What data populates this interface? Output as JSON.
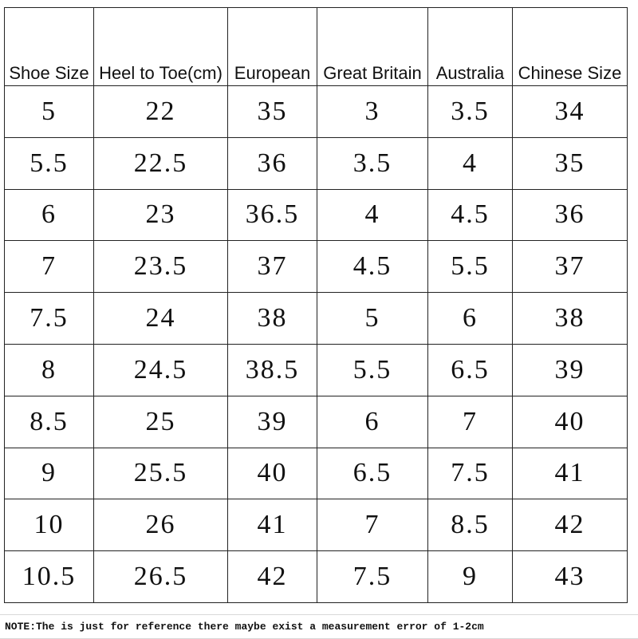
{
  "table": {
    "header": [
      "Shoe Size",
      "Heel to Toe(cm)",
      "European",
      "Great Britain",
      "Australia",
      "Chinese Size"
    ],
    "rows": [
      [
        "5",
        "22",
        "35",
        "3",
        "3.5",
        "34"
      ],
      [
        "5.5",
        "22.5",
        "36",
        "3.5",
        "4",
        "35"
      ],
      [
        "6",
        "23",
        "36.5",
        "4",
        "4.5",
        "36"
      ],
      [
        "7",
        "23.5",
        "37",
        "4.5",
        "5.5",
        "37"
      ],
      [
        "7.5",
        "24",
        "38",
        "5",
        "6",
        "38"
      ],
      [
        "8",
        "24.5",
        "38.5",
        "5.5",
        "6.5",
        "39"
      ],
      [
        "8.5",
        "25",
        "39",
        "6",
        "7",
        "40"
      ],
      [
        "9",
        "25.5",
        "40",
        "6.5",
        "7.5",
        "41"
      ],
      [
        "10",
        "26",
        "41",
        "7",
        "8.5",
        "42"
      ],
      [
        "10.5",
        "26.5",
        "42",
        "7.5",
        "9",
        "43"
      ]
    ]
  },
  "note": "NOTE:The is just for reference there maybe exist a measurement error of 1-2cm"
}
